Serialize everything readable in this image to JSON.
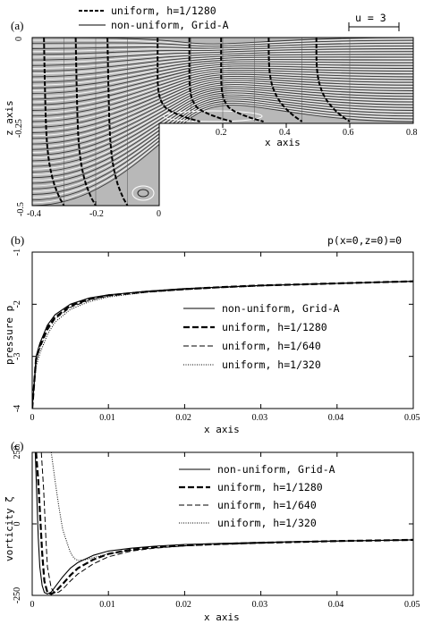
{
  "chart_data": [
    {
      "panel": "(a)",
      "type": "line",
      "legend": [
        "uniform, h=1/1280",
        "non-uniform, Grid-A"
      ],
      "scale_label": "u = 3",
      "xlabel": "x axis",
      "ylabel": "z axis",
      "xlim": [
        -0.4,
        0.8
      ],
      "ylim": [
        -0.5,
        0
      ],
      "step": {
        "x": 0,
        "z": -0.25
      },
      "x_ticks_lower": [
        "-0.4",
        "-0.2",
        "0"
      ],
      "x_ticks_upper": [
        "0.2",
        "0.4",
        "0.6",
        "0.8"
      ],
      "y_ticks": [
        "0",
        "-0.25",
        "-0.5"
      ],
      "profile_stations_x": [
        -0.3,
        -0.2,
        -0.1,
        0.1,
        0.2,
        0.3,
        0.45,
        0.6
      ],
      "profile_velocity_scale": 3
    },
    {
      "panel": "(b)",
      "type": "line",
      "annotation": "p(x=0,z=0)=0",
      "xlabel": "x axis",
      "ylabel": "pressure p",
      "xlim": [
        0,
        0.05
      ],
      "ylim": [
        -4,
        -1
      ],
      "x_ticks": [
        "0",
        "0.01",
        "0.02",
        "0.03",
        "0.04",
        "0.05"
      ],
      "y_ticks": [
        "-1",
        "-2",
        "-3",
        "-4"
      ],
      "x": [
        0,
        0.0005,
        0.001,
        0.002,
        0.003,
        0.005,
        0.0075,
        0.01,
        0.015,
        0.02,
        0.025,
        0.03,
        0.035,
        0.04,
        0.045,
        0.05
      ],
      "series": [
        {
          "name": "non-uniform, Grid-A",
          "style": "solid",
          "values": [
            -4.0,
            -3.0,
            -2.75,
            -2.4,
            -2.2,
            -2.0,
            -1.88,
            -1.82,
            -1.75,
            -1.7,
            -1.67,
            -1.64,
            -1.62,
            -1.6,
            -1.58,
            -1.56
          ]
        },
        {
          "name": "uniform, h=1/1280",
          "style": "dash-thick",
          "values": [
            -4.0,
            -3.05,
            -2.8,
            -2.45,
            -2.25,
            -2.03,
            -1.9,
            -1.83,
            -1.76,
            -1.71,
            -1.67,
            -1.64,
            -1.62,
            -1.6,
            -1.58,
            -1.56
          ]
        },
        {
          "name": "uniform, h=1/640",
          "style": "dash-thin",
          "values": [
            -4.0,
            -3.1,
            -2.85,
            -2.5,
            -2.28,
            -2.06,
            -1.92,
            -1.84,
            -1.76,
            -1.71,
            -1.67,
            -1.64,
            -1.62,
            -1.6,
            -1.58,
            -1.56
          ]
        },
        {
          "name": "uniform, h=1/320",
          "style": "dotted",
          "values": [
            -4.0,
            -3.2,
            -2.95,
            -2.58,
            -2.34,
            -2.1,
            -1.95,
            -1.86,
            -1.77,
            -1.72,
            -1.68,
            -1.65,
            -1.62,
            -1.6,
            -1.58,
            -1.56
          ]
        }
      ]
    },
    {
      "panel": "(c)",
      "type": "line",
      "xlabel": "x axis",
      "ylabel": "vorticity ζ",
      "xlim": [
        0,
        0.05
      ],
      "ylim": [
        -250,
        250
      ],
      "x_ticks": [
        "0",
        "0.01",
        "0.02",
        "0.03",
        "0.04",
        "0.05"
      ],
      "y_ticks": [
        "250",
        "0",
        "-250"
      ],
      "series": [
        {
          "name": "non-uniform, Grid-A",
          "style": "solid",
          "x": [
            0.0004,
            0.0006,
            0.0008,
            0.001,
            0.0013,
            0.0016,
            0.002,
            0.0025,
            0.003,
            0.004,
            0.005,
            0.006,
            0.008,
            0.01,
            0.013,
            0.016,
            0.02,
            0.025,
            0.03,
            0.035,
            0.04,
            0.045,
            0.05
          ],
          "values": [
            250,
            100,
            -50,
            -150,
            -215,
            -240,
            -245,
            -238,
            -220,
            -185,
            -155,
            -135,
            -110,
            -95,
            -85,
            -78,
            -72,
            -68,
            -65,
            -62,
            -60,
            -58,
            -56
          ]
        },
        {
          "name": "uniform, h=1/1280",
          "style": "dash-thick",
          "x": [
            0.0005,
            0.0008,
            0.001,
            0.0013,
            0.0016,
            0.002,
            0.0025,
            0.003,
            0.004,
            0.005,
            0.006,
            0.008,
            0.01,
            0.013,
            0.016,
            0.02,
            0.025,
            0.03,
            0.035,
            0.04,
            0.045,
            0.05
          ],
          "values": [
            250,
            150,
            50,
            -100,
            -200,
            -240,
            -245,
            -238,
            -210,
            -180,
            -155,
            -125,
            -105,
            -90,
            -82,
            -75,
            -70,
            -66,
            -63,
            -60,
            -58,
            -56
          ]
        },
        {
          "name": "uniform, h=1/640",
          "style": "dash-thin",
          "x": [
            0.0012,
            0.0015,
            0.0018,
            0.002,
            0.0025,
            0.003,
            0.0035,
            0.004,
            0.005,
            0.006,
            0.008,
            0.01,
            0.013,
            0.016,
            0.02,
            0.025,
            0.03,
            0.035,
            0.04,
            0.045,
            0.05
          ],
          "values": [
            250,
            120,
            -50,
            -150,
            -225,
            -242,
            -238,
            -228,
            -200,
            -175,
            -140,
            -115,
            -95,
            -85,
            -77,
            -71,
            -67,
            -63,
            -60,
            -58,
            -56
          ]
        },
        {
          "name": "uniform, h=1/320",
          "style": "dotted",
          "x": [
            0.0025,
            0.003,
            0.0035,
            0.004,
            0.005,
            0.0055,
            0.006,
            0.007,
            0.008,
            0.01,
            0.013,
            0.016,
            0.02,
            0.025,
            0.03,
            0.035,
            0.04,
            0.045,
            0.05
          ],
          "values": [
            250,
            150,
            60,
            -20,
            -100,
            -120,
            -128,
            -125,
            -118,
            -105,
            -92,
            -84,
            -77,
            -71,
            -67,
            -63,
            -60,
            -58,
            -56
          ]
        }
      ]
    }
  ]
}
